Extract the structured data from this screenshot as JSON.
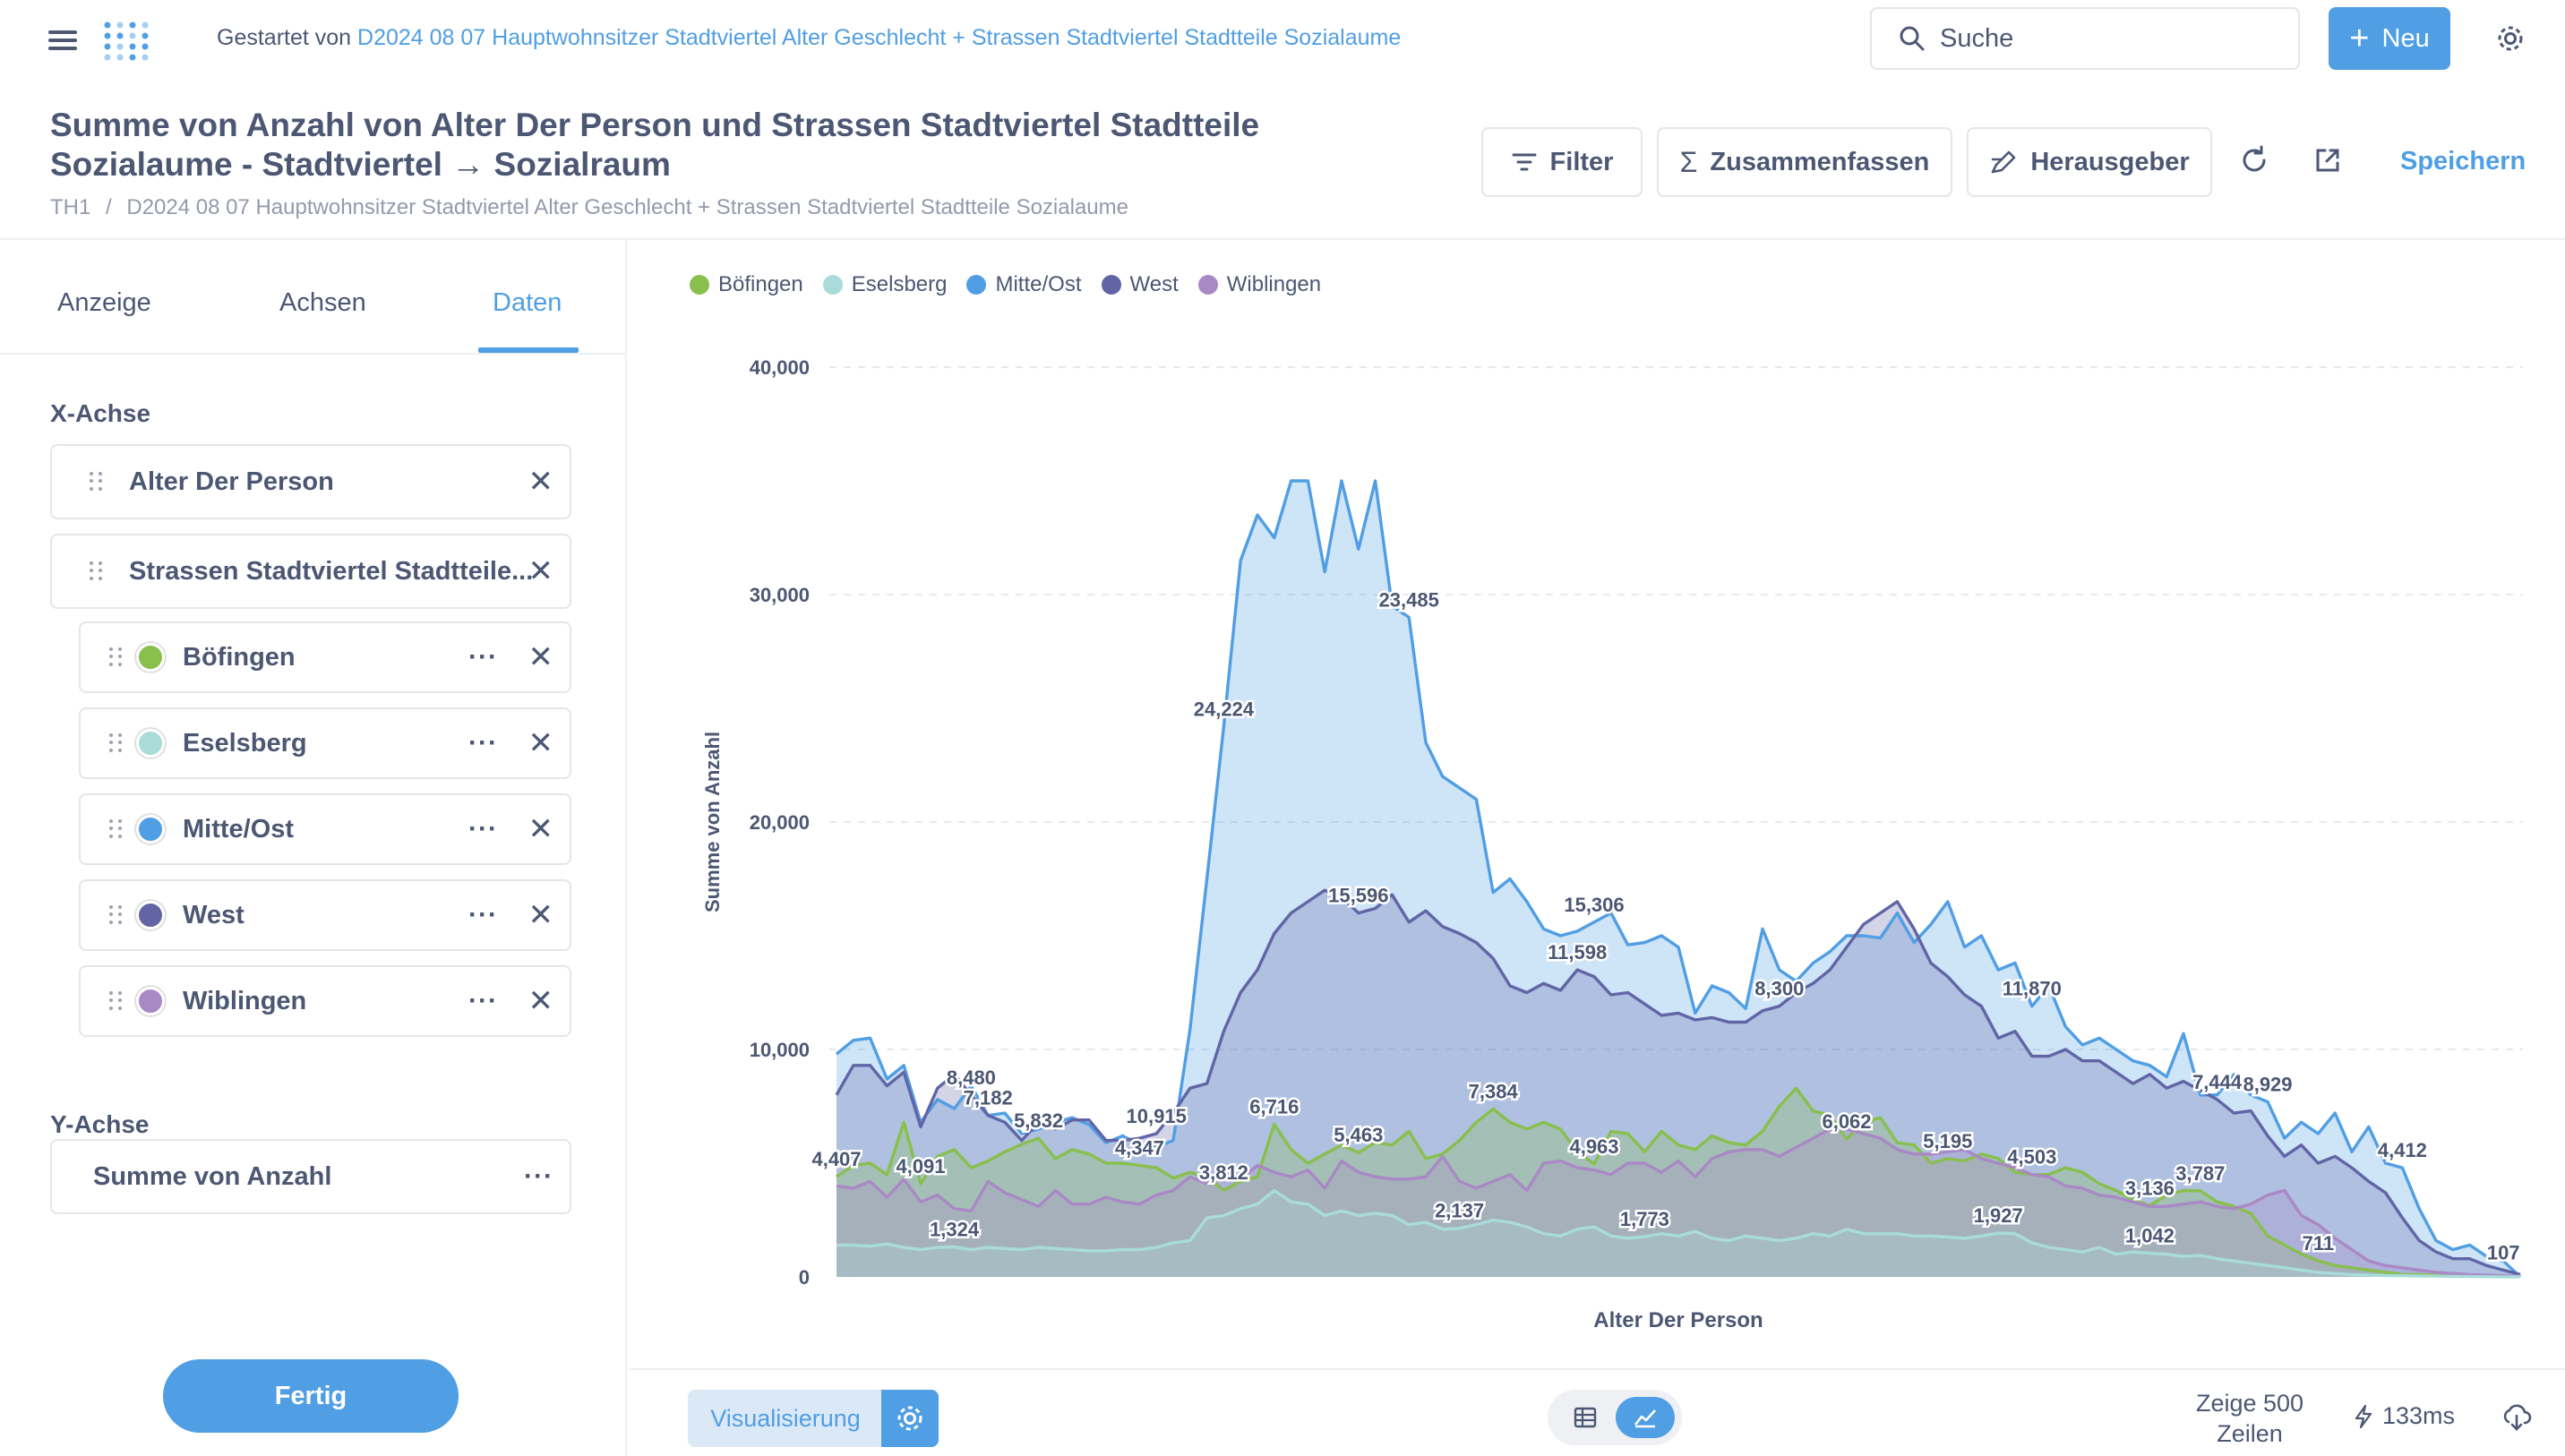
{
  "topbar": {
    "started_prefix": "Gestartet von",
    "started_link": "D2024 08 07 Hauptwohnsitzer Stadtviertel Alter Geschlecht + Strassen Stadtviertel Stadtteile Sozialaume",
    "search_label": "Suche",
    "new_label": "Neu"
  },
  "header": {
    "title": "Summe von Anzahl von Alter Der Person und Strassen Stadtviertel Stadtteile Sozialaume - Stadtviertel → Sozialraum",
    "breadcrumb_root": "TH1",
    "breadcrumb_sep": "/",
    "breadcrumb_item": "D2024 08 07 Hauptwohnsitzer Stadtviertel Alter Geschlecht + Strassen Stadtviertel Stadtteile Sozialaume",
    "filter_label": "Filter",
    "summarize_label": "Zusammenfassen",
    "editor_label": "Herausgeber",
    "save_label": "Speichern"
  },
  "sidebar": {
    "tabs": [
      "Anzeige",
      "Achsen",
      "Daten"
    ],
    "active_tab": "Daten",
    "x_axis_label": "X-Achse",
    "x_fields": [
      "Alter Der Person",
      "Strassen Stadtviertel Stadtteile..."
    ],
    "series": [
      {
        "name": "Böfingen",
        "color": "#88bf4d"
      },
      {
        "name": "Eselsberg",
        "color": "#a9dcd8"
      },
      {
        "name": "Mitte/Ost",
        "color": "#509ee3"
      },
      {
        "name": "West",
        "color": "#6165a6"
      },
      {
        "name": "Wiblingen",
        "color": "#a989c5"
      }
    ],
    "y_axis_label": "Y-Achse",
    "y_field": "Summe von Anzahl",
    "done_label": "Fertig"
  },
  "footer": {
    "viz_label": "Visualisierung",
    "rows_label": "Zeige 500 Zeilen",
    "timing": "133ms"
  },
  "chart_data": {
    "type": "area",
    "xlabel": "Alter Der Person",
    "ylabel": "Summe von Anzahl",
    "ylim": [
      0,
      40000
    ],
    "yticks": [
      0,
      10000,
      20000,
      30000,
      40000
    ],
    "ytick_labels": [
      "0",
      "10,000",
      "20,000",
      "30,000",
      "40,000"
    ],
    "grid": true,
    "legend_position": "top-left",
    "x_start": 0,
    "x_end": 100,
    "series": [
      {
        "name": "Mitte/Ost",
        "color": "#509ee3",
        "values": [
          9800,
          10400,
          10500,
          8700,
          9300,
          6800,
          7800,
          7400,
          8400,
          7100,
          7200,
          6300,
          6500,
          6800,
          7000,
          6700,
          5900,
          6200,
          5800,
          5700,
          6000,
          10900,
          17500,
          24200,
          31500,
          33500,
          32500,
          35000,
          35000,
          31000,
          35000,
          32000,
          35000,
          29500,
          29000,
          23500,
          22000,
          21500,
          21000,
          16900,
          17500,
          16500,
          15300,
          15000,
          15200,
          15600,
          16000,
          14600,
          14700,
          15000,
          14500,
          11600,
          12800,
          12500,
          11800,
          15300,
          13500,
          13000,
          13800,
          14300,
          15000,
          15000,
          14900,
          16000,
          14700,
          15500,
          16500,
          14500,
          15000,
          13500,
          13800,
          11900,
          12800,
          11000,
          10200,
          10500,
          10000,
          9500,
          9300,
          8800,
          10700,
          8000,
          8000,
          8900,
          8000,
          7700,
          6100,
          6800,
          6300,
          7200,
          5500,
          6600,
          5000,
          4800,
          3000,
          1600,
          1200,
          1400,
          900,
          700,
          0
        ]
      },
      {
        "name": "West",
        "color": "#6165a6",
        "values": [
          8000,
          9300,
          9300,
          8400,
          9000,
          6600,
          8300,
          8900,
          8000,
          7100,
          6800,
          6000,
          6800,
          6500,
          6900,
          6900,
          6000,
          6000,
          6100,
          6300,
          7200,
          8300,
          8500,
          10800,
          12500,
          13500,
          15100,
          16000,
          16500,
          17000,
          16700,
          16000,
          16200,
          16800,
          15600,
          16100,
          15400,
          15100,
          14700,
          14000,
          12800,
          12500,
          12900,
          12600,
          13500,
          13200,
          12400,
          12500,
          12000,
          11500,
          11600,
          11300,
          11400,
          11200,
          11200,
          11700,
          11900,
          12500,
          12900,
          13500,
          14500,
          15500,
          16000,
          16500,
          15300,
          13800,
          13200,
          12400,
          11900,
          10500,
          10800,
          9700,
          9700,
          10000,
          9500,
          9500,
          9000,
          8500,
          8900,
          8300,
          8600,
          8200,
          7800,
          7200,
          7300,
          6200,
          5300,
          5800,
          5000,
          5300,
          4800,
          4200,
          3700,
          2600,
          1600,
          1100,
          800,
          800,
          500,
          300,
          107
        ]
      },
      {
        "name": "Böfingen",
        "color": "#88bf4d",
        "values": [
          4407,
          4900,
          5000,
          4500,
          6800,
          4091,
          5300,
          5600,
          4800,
          5100,
          5500,
          5832,
          6100,
          5200,
          5600,
          5400,
          5000,
          5000,
          4900,
          4800,
          4347,
          4600,
          4400,
          3812,
          4200,
          4400,
          6716,
          5600,
          5000,
          5400,
          5800,
          5463,
          5900,
          5800,
          6400,
          5200,
          5400,
          6000,
          6800,
          7384,
          6800,
          6500,
          6800,
          6500,
          5500,
          4963,
          6400,
          6300,
          5500,
          6400,
          5800,
          5600,
          6200,
          5900,
          5800,
          6400,
          7500,
          8300,
          7300,
          7100,
          6062,
          6800,
          7000,
          5900,
          5800,
          5000,
          5195,
          5100,
          5400,
          5200,
          4600,
          4503,
          4500,
          4800,
          4600,
          4100,
          3800,
          3400,
          3136,
          3600,
          3800,
          3787,
          3300,
          3100,
          2800,
          1800,
          1400,
          1000,
          711,
          500,
          400,
          300,
          200,
          107,
          100,
          80,
          60,
          50,
          40,
          20,
          10
        ]
      },
      {
        "name": "Wiblingen",
        "color": "#a989c5",
        "values": [
          4000,
          3900,
          4200,
          3500,
          4300,
          3300,
          3600,
          3000,
          2900,
          4200,
          3700,
          3400,
          3100,
          3800,
          3200,
          3200,
          3500,
          3300,
          3200,
          3600,
          3800,
          4400,
          4100,
          4600,
          4300,
          4900,
          4600,
          4400,
          4700,
          3900,
          5100,
          4600,
          4400,
          4300,
          4300,
          4400,
          5300,
          4200,
          3900,
          4200,
          4500,
          3800,
          5000,
          5100,
          4800,
          4700,
          4500,
          5000,
          5000,
          4600,
          5100,
          4400,
          5200,
          5500,
          5600,
          5600,
          5300,
          5700,
          6100,
          6500,
          6500,
          6300,
          6100,
          5600,
          5400,
          5400,
          5500,
          5600,
          5200,
          5000,
          4800,
          4500,
          4400,
          4000,
          3900,
          3600,
          3500,
          3300,
          3100,
          3100,
          3200,
          3300,
          3100,
          3000,
          3200,
          3600,
          3800,
          2700,
          2300,
          1700,
          1200,
          700,
          500,
          400,
          300,
          200,
          150,
          100,
          80,
          50,
          30
        ]
      },
      {
        "name": "Eselsberg",
        "color": "#a9dcd8",
        "values": [
          1400,
          1400,
          1350,
          1450,
          1300,
          1200,
          1300,
          1324,
          1200,
          1300,
          1250,
          1200,
          1300,
          1250,
          1200,
          1150,
          1150,
          1200,
          1200,
          1300,
          1500,
          1600,
          2600,
          2700,
          3000,
          3200,
          3800,
          3300,
          3200,
          2700,
          2900,
          2700,
          2800,
          2700,
          2300,
          2400,
          2100,
          2137,
          2300,
          2500,
          2400,
          2200,
          1900,
          1800,
          2100,
          2200,
          1800,
          1700,
          1773,
          1900,
          1800,
          2000,
          1700,
          1600,
          1800,
          1700,
          1600,
          1700,
          1900,
          1800,
          2100,
          1900,
          1900,
          1900,
          1800,
          1800,
          1750,
          1700,
          1800,
          1927,
          1900,
          1500,
          1300,
          1200,
          1100,
          1300,
          1000,
          1100,
          1042,
          1000,
          900,
          950,
          800,
          700,
          600,
          500,
          400,
          300,
          200,
          150,
          100,
          80,
          60,
          50,
          40,
          30,
          20,
          15,
          10,
          5,
          3
        ]
      }
    ],
    "data_labels": [
      {
        "series": "Mitte/Ost",
        "x": 23,
        "text": "24,224"
      },
      {
        "series": "Mitte/Ost",
        "x": 34,
        "text": "23,485"
      },
      {
        "series": "Mitte/Ost",
        "x": 45,
        "text": "15,306"
      },
      {
        "series": "Mitte/Ost",
        "x": 71,
        "text": "11,870"
      },
      {
        "series": "Mitte/Ost",
        "x": 85,
        "text": "8,929"
      },
      {
        "series": "Mitte/Ost",
        "x": 93,
        "text": "4,412"
      },
      {
        "series": "West",
        "x": 8,
        "text": "8,480"
      },
      {
        "series": "West",
        "x": 9,
        "text": "7,182"
      },
      {
        "series": "West",
        "x": 19,
        "text": "10,915"
      },
      {
        "series": "West",
        "x": 31,
        "text": "15,596"
      },
      {
        "series": "West",
        "x": 44,
        "text": "11,598"
      },
      {
        "series": "West",
        "x": 56,
        "text": "8,300"
      },
      {
        "series": "West",
        "x": 82,
        "text": "7,444"
      },
      {
        "series": "West",
        "x": 99,
        "text": "107"
      },
      {
        "series": "Böfingen",
        "x": 0,
        "text": "4,407"
      },
      {
        "series": "Böfingen",
        "x": 5,
        "text": "4,091"
      },
      {
        "series": "Böfingen",
        "x": 12,
        "text": "5,832"
      },
      {
        "series": "Böfingen",
        "x": 18,
        "text": "4,347"
      },
      {
        "series": "Böfingen",
        "x": 23,
        "text": "3,812"
      },
      {
        "series": "Böfingen",
        "x": 26,
        "text": "6,716"
      },
      {
        "series": "Böfingen",
        "x": 31,
        "text": "5,463"
      },
      {
        "series": "Böfingen",
        "x": 39,
        "text": "7,384"
      },
      {
        "series": "Böfingen",
        "x": 45,
        "text": "4,963"
      },
      {
        "series": "Böfingen",
        "x": 60,
        "text": "6,062"
      },
      {
        "series": "Böfingen",
        "x": 66,
        "text": "5,195"
      },
      {
        "series": "Böfingen",
        "x": 71,
        "text": "4,503"
      },
      {
        "series": "Böfingen",
        "x": 78,
        "text": "3,136"
      },
      {
        "series": "Böfingen",
        "x": 81,
        "text": "3,787"
      },
      {
        "series": "Böfingen",
        "x": 88,
        "text": "711"
      },
      {
        "series": "Eselsberg",
        "x": 7,
        "text": "1,324"
      },
      {
        "series": "Eselsberg",
        "x": 37,
        "text": "2,137"
      },
      {
        "series": "Eselsberg",
        "x": 48,
        "text": "1,773"
      },
      {
        "series": "Eselsberg",
        "x": 69,
        "text": "1,927"
      },
      {
        "series": "Eselsberg",
        "x": 78,
        "text": "1,042"
      }
    ]
  }
}
